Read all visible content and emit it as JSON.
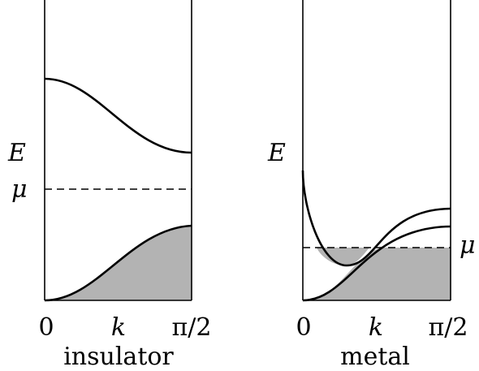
{
  "panels": [
    {
      "id": "insulator",
      "caption": "insulator",
      "energy_label": "E",
      "mu_label": "μ",
      "k_label": "k",
      "k_ticks": [
        "0",
        "π/2"
      ]
    },
    {
      "id": "metal",
      "caption": "metal",
      "energy_label": "E",
      "mu_label": "μ",
      "k_label": "k",
      "k_ticks": [
        "0",
        "π/2"
      ]
    }
  ],
  "colors": {
    "line": "#000000",
    "filled_states": "#b3b3b3",
    "background": "#ffffff"
  }
}
